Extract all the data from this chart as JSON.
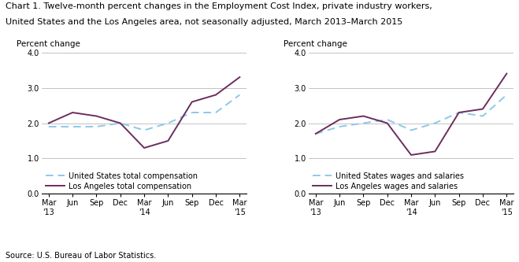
{
  "title_line1": "Chart 1. Twelve-month percent changes in the Employment Cost Index, private industry workers,",
  "title_line2": "United States and the Los Angeles area, not seasonally adjusted, March 2013–March 2015",
  "ylabel": "Percent change",
  "source": "Source: U.S. Bureau of Labor Statistics.",
  "x_labels": [
    "Mar\n'13",
    "Jun",
    "Sep",
    "Dec",
    "Mar\n'14",
    "Jun",
    "Sep",
    "Dec",
    "Mar\n'15"
  ],
  "x_positions": [
    0,
    1,
    2,
    3,
    4,
    5,
    6,
    7,
    8
  ],
  "ylim": [
    0.0,
    4.0
  ],
  "yticks": [
    0.0,
    1.0,
    2.0,
    3.0,
    4.0
  ],
  "chart1": {
    "us_compensation": [
      1.9,
      1.9,
      1.9,
      2.0,
      1.8,
      2.0,
      2.3,
      2.3,
      2.8
    ],
    "la_compensation": [
      2.0,
      2.3,
      2.2,
      2.0,
      1.3,
      1.5,
      2.6,
      2.8,
      3.3
    ],
    "legend1": "United States total compensation",
    "legend2": "Los Angeles total compensation"
  },
  "chart2": {
    "us_wages": [
      1.7,
      1.9,
      2.0,
      2.1,
      1.8,
      2.0,
      2.3,
      2.2,
      2.8
    ],
    "la_wages": [
      1.7,
      2.1,
      2.2,
      2.0,
      1.1,
      1.2,
      2.3,
      2.4,
      3.4
    ],
    "legend1": "United States wages and salaries",
    "legend2": "Los Angeles wages and salaries"
  },
  "us_color": "#8EC8E8",
  "la_color": "#6B2D5E",
  "grid_color": "#AAAAAA",
  "background_color": "#FFFFFF",
  "title_fontsize": 8.0,
  "label_fontsize": 7.5,
  "tick_fontsize": 7.0,
  "legend_fontsize": 7.0,
  "source_fontsize": 7.0
}
